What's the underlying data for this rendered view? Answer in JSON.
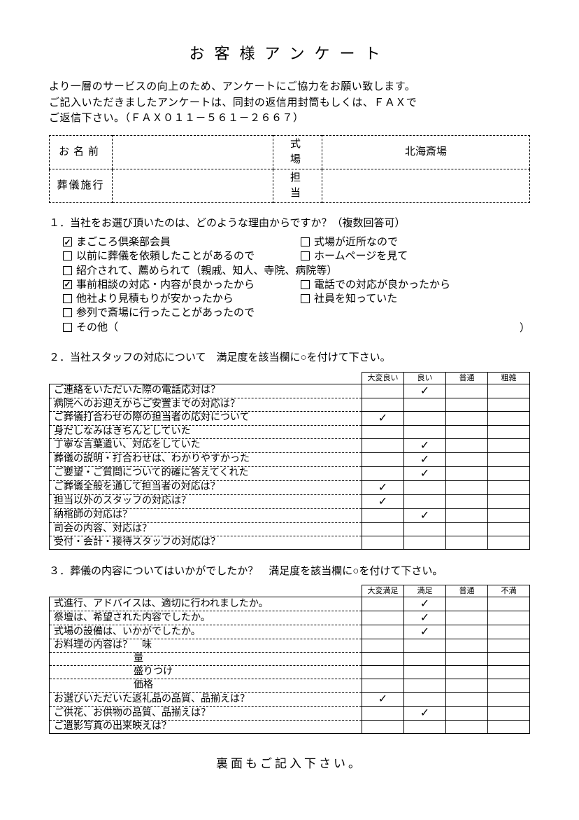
{
  "title": "お客様アンケート",
  "intro_lines": [
    "より一層のサービスの向上のため、アンケートにご協力をお願い致します。",
    "ご記入いただきましたアンケートは、同封の返信用封筒もしくは、ＦＡＸで",
    "ご返信下さい。（ＦＡＸ０１１－５６１－２６６７）"
  ],
  "header_box": {
    "name_label": "お名前",
    "name_value": "",
    "venue_label": "式　場",
    "venue_value": "北海斎場",
    "service_label": "葬儀施行",
    "service_value": "",
    "staff_label": "担　当",
    "staff_value": ""
  },
  "q1": {
    "heading": "１．当社をお選び頂いたのは、どのような理由からですか？（複数回答可）",
    "options": [
      {
        "label": "まごころ倶楽部会員",
        "checked": true,
        "col": "left"
      },
      {
        "label": "式場が近所なので",
        "checked": false,
        "col": "right"
      },
      {
        "label": "以前に葬儀を依頼したことがあるので",
        "checked": false,
        "col": "left"
      },
      {
        "label": "ホームページを見て",
        "checked": false,
        "col": "right"
      },
      {
        "label": "紹介されて、薦められて（親戚、知人、寺院、病院等）",
        "checked": false,
        "col": "full"
      },
      {
        "label": "事前相談の対応・内容が良かったから",
        "checked": true,
        "col": "left"
      },
      {
        "label": "電話での対応が良かったから",
        "checked": false,
        "col": "right"
      },
      {
        "label": "他社より見積もりが安かったから",
        "checked": false,
        "col": "left"
      },
      {
        "label": "社員を知っていた",
        "checked": false,
        "col": "right"
      },
      {
        "label": "参列で斎場に行ったことがあったので",
        "checked": false,
        "col": "full"
      },
      {
        "label": "その他（",
        "checked": false,
        "col": "other",
        "close_paren": "）"
      }
    ]
  },
  "q2": {
    "heading": "２．当社スタッフの対応について　満足度を該当欄に○を付けて下さい。",
    "columns": [
      "大変良い",
      "良い",
      "普通",
      "粗雑"
    ],
    "rows": [
      {
        "label": "ご連絡をいただいた際の電話応対は？",
        "checks": [
          0,
          1,
          0,
          0
        ]
      },
      {
        "label": "病院へのお迎えからご安置までの対応は？",
        "checks": [
          0,
          0,
          0,
          0
        ]
      },
      {
        "label": "ご葬儀打合わせの際の担当者の応対について",
        "checks": [
          1,
          0,
          0,
          0
        ]
      },
      {
        "label": "身だしなみはきちんとしていた",
        "checks": [
          0,
          0,
          0,
          0
        ]
      },
      {
        "label": "丁寧な言葉遣い、対応をしていた",
        "checks": [
          0,
          1,
          0,
          0
        ]
      },
      {
        "label": "葬儀の説明・打合わせは、わかりやすかった",
        "checks": [
          0,
          1,
          0,
          0
        ]
      },
      {
        "label": "ご要望・ご質問について的確に答えてくれた",
        "checks": [
          0,
          1,
          0,
          0
        ]
      },
      {
        "label": "ご葬儀全般を通して担当者の対応は？",
        "checks": [
          1,
          0,
          0,
          0
        ]
      },
      {
        "label": "担当以外のスタッフの対応は？",
        "checks": [
          1,
          0,
          0,
          0
        ]
      },
      {
        "label": "納棺師の対応は？",
        "checks": [
          0,
          1,
          0,
          0
        ]
      },
      {
        "label": "司会の内容、対応は？",
        "checks": [
          0,
          0,
          0,
          0
        ]
      },
      {
        "label": "受付・会計・接待スタッフの対応は？",
        "checks": [
          0,
          0,
          0,
          0
        ]
      }
    ]
  },
  "q3": {
    "heading": "３．葬儀の内容についてはいかがでしたか？　満足度を該当欄に○を付けて下さい。",
    "columns": [
      "大変満足",
      "満足",
      "普通",
      "不満"
    ],
    "rows": [
      {
        "label": "式進行、アドバイスは、適切に行われましたか。",
        "checks": [
          0,
          1,
          0,
          0
        ]
      },
      {
        "label": "祭壇は、希望された内容でしたか。",
        "checks": [
          0,
          1,
          0,
          0
        ]
      },
      {
        "label": "式場の設備は、いかがでしたか。",
        "checks": [
          0,
          1,
          0,
          0
        ]
      },
      {
        "label": "お料理の内容は？　味",
        "checks": [
          0,
          0,
          0,
          0
        ]
      },
      {
        "label": "量",
        "indent": true,
        "checks": [
          0,
          0,
          0,
          0
        ]
      },
      {
        "label": "盛りつけ",
        "indent": true,
        "checks": [
          0,
          0,
          0,
          0
        ]
      },
      {
        "label": "価格",
        "indent": true,
        "checks": [
          0,
          0,
          0,
          0
        ]
      },
      {
        "label": "お選びいただいた返礼品の品質、品揃えは？",
        "checks": [
          1,
          0,
          0,
          0
        ]
      },
      {
        "label": "ご供花、お供物の品質、品揃えは？",
        "checks": [
          0,
          1,
          0,
          0
        ]
      },
      {
        "label": "ご遺影写真の出来映えは？",
        "checks": [
          0,
          0,
          0,
          0
        ]
      }
    ]
  },
  "footer": "裏面もご記入下さい。",
  "checkmark_glyph": "✓"
}
